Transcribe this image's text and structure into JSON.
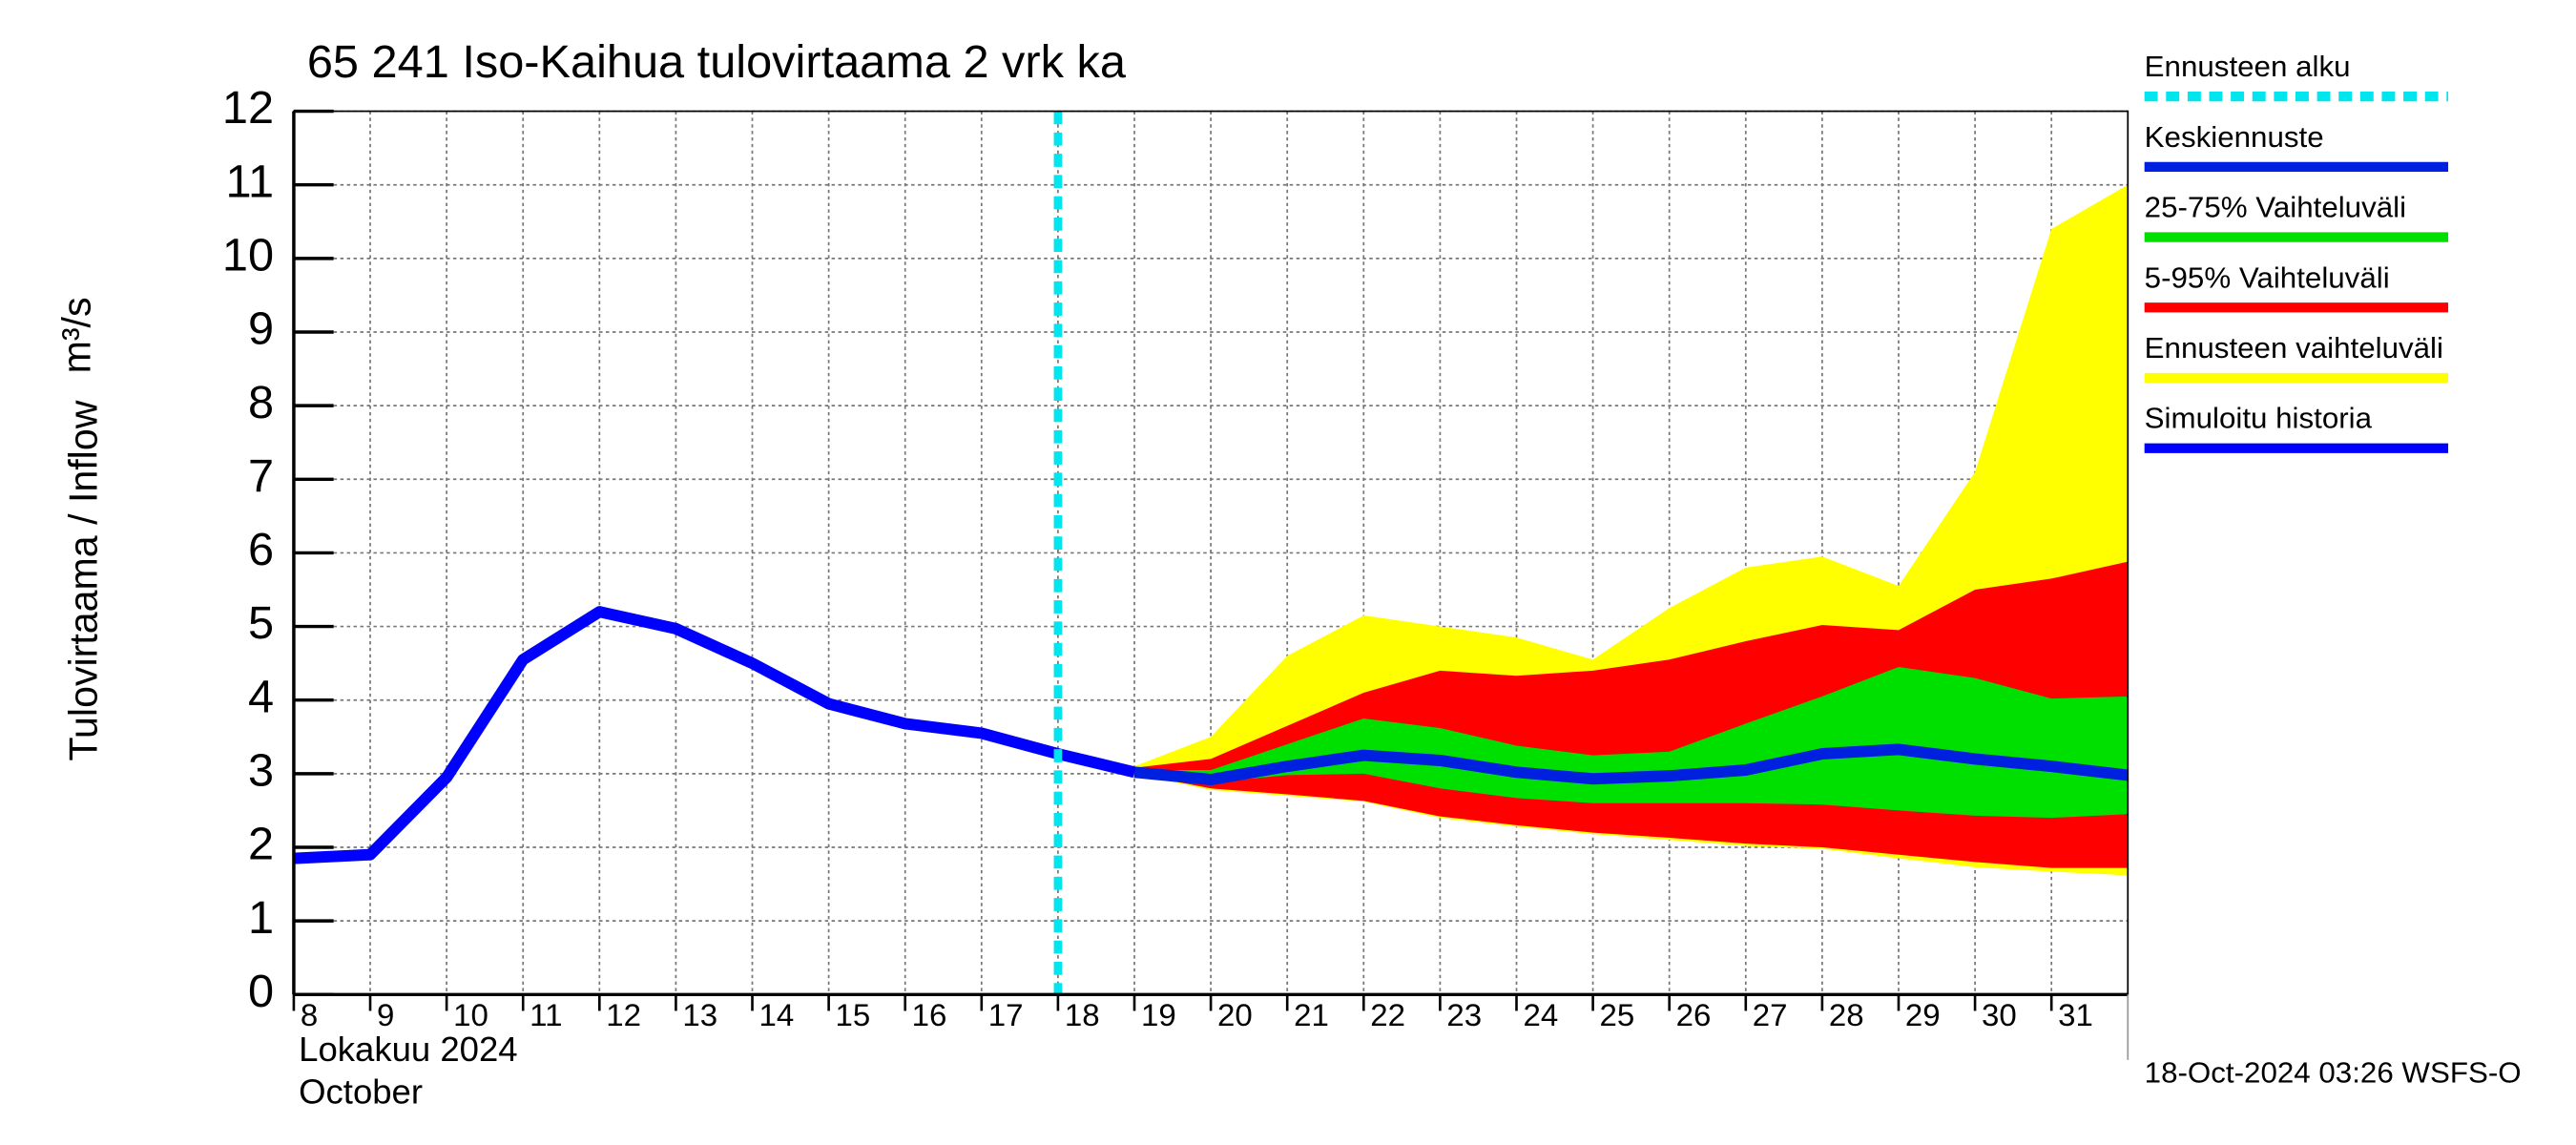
{
  "chart_data": {
    "type": "line",
    "title": "65 241 Iso-Kaihua tulovirtaama 2 vrk ka",
    "ylabel": "Tulovirtaama / Inflow",
    "yunit": "m³/s",
    "xlabel_lines": [
      "Lokakuu  2024",
      "October"
    ],
    "footer": "18-Oct-2024 03:26 WSFS-O",
    "xlim": [
      8,
      32
    ],
    "xticks": [
      8,
      9,
      10,
      11,
      12,
      13,
      14,
      15,
      16,
      17,
      18,
      19,
      20,
      21,
      22,
      23,
      24,
      25,
      26,
      27,
      28,
      29,
      30,
      31
    ],
    "ylim": [
      0,
      12
    ],
    "yticks": [
      0,
      1,
      2,
      3,
      4,
      5,
      6,
      7,
      8,
      9,
      10,
      11,
      12
    ],
    "grid": true,
    "forecast_start": {
      "name": "Ennusteen alku",
      "x": 18,
      "color": "#00e5ee"
    },
    "series": [
      {
        "name": "Keskiennuste",
        "kind": "line",
        "color": "#0020e0",
        "x": [
          19,
          20,
          21,
          22,
          23,
          24,
          25,
          26,
          27,
          28,
          29,
          30,
          31,
          32
        ],
        "values": [
          3.02,
          2.92,
          3.1,
          3.25,
          3.18,
          3.02,
          2.93,
          2.97,
          3.05,
          3.27,
          3.33,
          3.2,
          3.1,
          2.98
        ]
      },
      {
        "name": "25-75% Vaihteluväli",
        "kind": "band",
        "color": "#00e000",
        "x": [
          19,
          20,
          21,
          22,
          23,
          24,
          25,
          26,
          27,
          28,
          29,
          30,
          31,
          32
        ],
        "upper": [
          3.05,
          3.05,
          3.4,
          3.75,
          3.62,
          3.38,
          3.25,
          3.3,
          3.68,
          4.05,
          4.45,
          4.3,
          4.02,
          4.05
        ],
        "lower": [
          3.0,
          2.88,
          2.98,
          3.0,
          2.8,
          2.67,
          2.6,
          2.6,
          2.6,
          2.58,
          2.5,
          2.43,
          2.4,
          2.45
        ]
      },
      {
        "name": "5-95% Vaihteluväli",
        "kind": "band",
        "color": "#ff0000",
        "x": [
          19,
          20,
          21,
          22,
          23,
          24,
          25,
          26,
          27,
          28,
          29,
          30,
          31,
          32
        ],
        "upper": [
          3.08,
          3.2,
          3.65,
          4.1,
          4.4,
          4.33,
          4.4,
          4.55,
          4.8,
          5.02,
          4.95,
          5.5,
          5.65,
          5.88
        ],
        "lower": [
          3.0,
          2.8,
          2.72,
          2.63,
          2.42,
          2.3,
          2.2,
          2.13,
          2.05,
          2.0,
          1.9,
          1.8,
          1.72,
          1.72
        ]
      },
      {
        "name": "Ennusteen vaihteluväli",
        "kind": "band",
        "color": "#ffff00",
        "x": [
          19,
          20,
          21,
          22,
          23,
          24,
          25,
          26,
          27,
          28,
          29,
          30,
          31,
          32
        ],
        "upper": [
          3.1,
          3.5,
          4.6,
          5.15,
          5.0,
          4.85,
          4.55,
          5.25,
          5.8,
          5.95,
          5.55,
          7.1,
          10.4,
          11.0
        ],
        "lower": [
          3.0,
          2.78,
          2.7,
          2.62,
          2.4,
          2.28,
          2.18,
          2.1,
          2.02,
          1.98,
          1.85,
          1.73,
          1.67,
          1.62
        ]
      },
      {
        "name": "Simuloitu historia",
        "kind": "line",
        "color": "#0000ff",
        "x": [
          8,
          9,
          10,
          11,
          12,
          13,
          14,
          15,
          16,
          17,
          18,
          19
        ],
        "values": [
          1.85,
          1.9,
          2.95,
          4.55,
          5.2,
          4.97,
          4.5,
          3.95,
          3.68,
          3.55,
          3.27,
          3.02
        ]
      }
    ]
  }
}
